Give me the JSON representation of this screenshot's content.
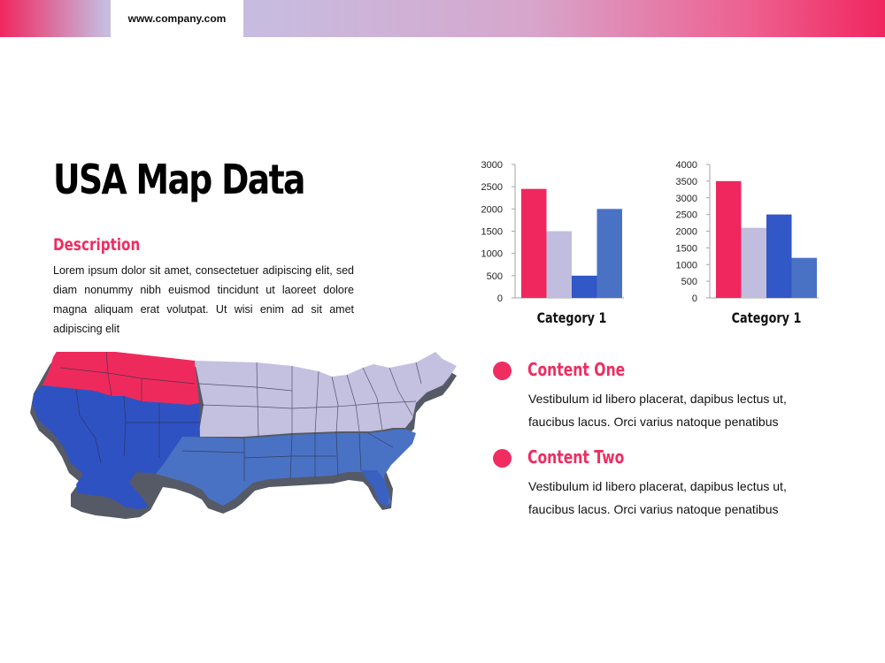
{
  "header": {
    "url": "www.company.com"
  },
  "slide": {
    "title": "USA Map Data",
    "description_heading": "Description",
    "description_text": "Lorem ipsum dolor sit amet, consectetuer adipiscing elit, sed diam nonummy nibh euismod tincidunt ut laoreet dolore magna aliquam erat volutpat. Ut wisi enim ad sit amet adipiscing elit"
  },
  "content": [
    {
      "title": "Content One",
      "body": "Vestibulum id libero placerat, dapibus lectus ut, faucibus lacus. Orci varius natoque penatibus"
    },
    {
      "title": "Content Two",
      "body": "Vestibulum id libero placerat, dapibus lectus ut, faucibus lacus. Orci varius natoque penatibus"
    }
  ],
  "colors": {
    "accent": "#ef2d61",
    "lavender": "#c1bddf",
    "royal_blue": "#3257c6",
    "steel_blue": "#4a72c4",
    "map_shadow": "#555a66"
  },
  "chart_data": [
    {
      "type": "bar",
      "categories": [
        "Category 1"
      ],
      "series": [
        {
          "values": [
            2450
          ],
          "color": "#f0275f"
        },
        {
          "values": [
            1500
          ],
          "color": "#c1bddf"
        },
        {
          "values": [
            500
          ],
          "color": "#3257c6"
        },
        {
          "values": [
            2000
          ],
          "color": "#4a72c4"
        }
      ],
      "ylim": [
        0,
        3000
      ],
      "yticks": [
        0,
        500,
        1000,
        1500,
        2000,
        2500,
        3000
      ],
      "grid": false
    },
    {
      "type": "bar",
      "categories": [
        "Category 1"
      ],
      "series": [
        {
          "values": [
            3500
          ],
          "color": "#f0275f"
        },
        {
          "values": [
            2100
          ],
          "color": "#c1bddf"
        },
        {
          "values": [
            2500
          ],
          "color": "#3257c6"
        },
        {
          "values": [
            1200
          ],
          "color": "#4a72c4"
        }
      ],
      "ylim": [
        0,
        4000
      ],
      "yticks": [
        0,
        500,
        1000,
        1500,
        2000,
        2500,
        3000,
        3500,
        4000
      ],
      "grid": false
    }
  ]
}
